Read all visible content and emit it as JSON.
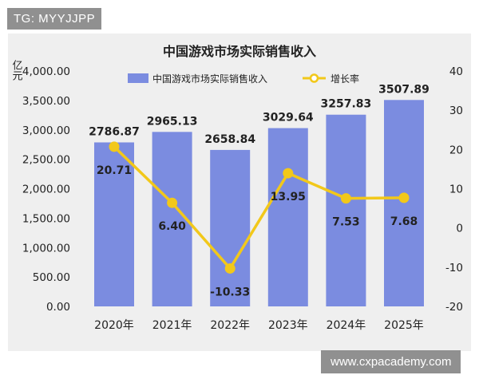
{
  "watermarks": {
    "top_left": "TG: MYYJJPP",
    "bottom_right": "www.cxpacademy.com"
  },
  "colors": {
    "background": "#efefef",
    "bar": "#7b8ce0",
    "line": "#f2c81a",
    "point_outline": "#f2c81a",
    "text": "#222222"
  },
  "chart_data": {
    "type": "bar",
    "title": "中国游戏市场实际销售收入",
    "ylabel": "亿元",
    "categories": [
      "2020年",
      "2021年",
      "2022年",
      "2023年",
      "2024年",
      "2025年"
    ],
    "series": [
      {
        "name": "中国游戏市场实际销售收入",
        "type": "bar",
        "axis": "left",
        "values": [
          2786.87,
          2965.13,
          2658.84,
          3029.64,
          3257.83,
          3507.89
        ],
        "labels": [
          "2786.87",
          "2965.13",
          "2658.84",
          "3029.64",
          "3257.83",
          "3507.89"
        ]
      },
      {
        "name": "增长率",
        "type": "line",
        "axis": "right",
        "values": [
          20.71,
          6.4,
          -10.33,
          13.95,
          7.53,
          7.68
        ],
        "labels": [
          "20.71",
          "6.40",
          "-10.33",
          "13.95",
          "7.53",
          "7.68"
        ]
      }
    ],
    "y_left": {
      "range": [
        0,
        4000
      ],
      "ticks": [
        "0.00",
        "500.00",
        "1,000.00",
        "1,500.00",
        "2,000.00",
        "2,500.00",
        "3,000.00",
        "3,500.00",
        "4,000.00"
      ]
    },
    "y_right": {
      "range": [
        -20,
        40
      ],
      "ticks": [
        "-20",
        "-10",
        "0",
        "10",
        "20",
        "30",
        "40"
      ]
    },
    "legend_position": "top-center",
    "grid": false
  }
}
